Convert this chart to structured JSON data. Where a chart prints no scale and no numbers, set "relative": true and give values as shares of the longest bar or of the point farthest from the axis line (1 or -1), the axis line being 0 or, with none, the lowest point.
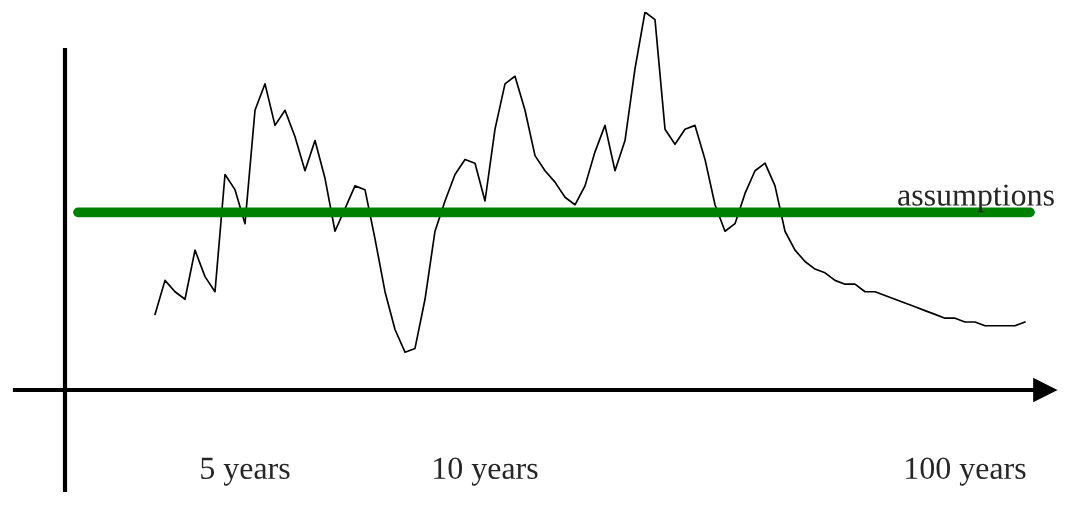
{
  "chart_data": {
    "type": "line",
    "relative": true,
    "categories": [
      null,
      null,
      null,
      null,
      null,
      null,
      null,
      null,
      null,
      "5 years",
      null,
      null,
      null,
      null,
      null,
      null,
      null,
      null,
      null,
      null,
      null,
      null,
      null,
      null,
      null,
      null,
      null,
      null,
      null,
      null,
      null,
      null,
      null,
      "10 years",
      null,
      null,
      null,
      null,
      null,
      null,
      null,
      null,
      null,
      null,
      null,
      null,
      null,
      null,
      null,
      null,
      null,
      null,
      null,
      null,
      null,
      null,
      null,
      null,
      null,
      null,
      null,
      null,
      null,
      null,
      null,
      null,
      null,
      null,
      null,
      null,
      null,
      null,
      null,
      null,
      null,
      null,
      null,
      null,
      null,
      null,
      null,
      "100 years",
      null,
      null,
      null,
      null,
      null,
      null
    ],
    "series": [
      {
        "color": "#000000",
        "values": [
          0.2,
          0.29,
          0.26,
          0.24,
          0.37,
          0.3,
          0.26,
          0.57,
          0.53,
          0.44,
          0.74,
          0.81,
          0.7,
          0.74,
          0.67,
          0.58,
          0.66,
          0.56,
          0.42,
          0.48,
          0.54,
          0.53,
          0.4,
          0.26,
          0.16,
          0.1,
          0.11,
          0.24,
          0.42,
          0.5,
          0.57,
          0.61,
          0.6,
          0.5,
          0.69,
          0.81,
          0.83,
          0.74,
          0.62,
          0.58,
          0.55,
          0.51,
          0.49,
          0.54,
          0.63,
          0.7,
          0.58,
          0.66,
          0.85,
          1,
          0.98,
          0.69,
          0.65,
          0.69,
          0.7,
          0.61,
          0.49,
          0.42,
          0.44,
          0.52,
          0.58,
          0.6,
          0.54,
          0.42,
          0.37,
          0.34,
          0.32,
          0.31,
          0.29,
          0.28,
          0.28,
          0.26,
          0.26,
          0.25,
          0.24,
          0.23,
          0.22,
          0.21,
          0.2,
          0.19,
          0.19,
          0.18,
          0.18,
          0.17,
          0.17,
          0.17,
          0.17,
          0.18
        ]
      }
    ],
    "ref_lines": [
      {
        "axis": "y",
        "value": 0.47,
        "label": "assumptions",
        "color": "#008000"
      }
    ]
  }
}
